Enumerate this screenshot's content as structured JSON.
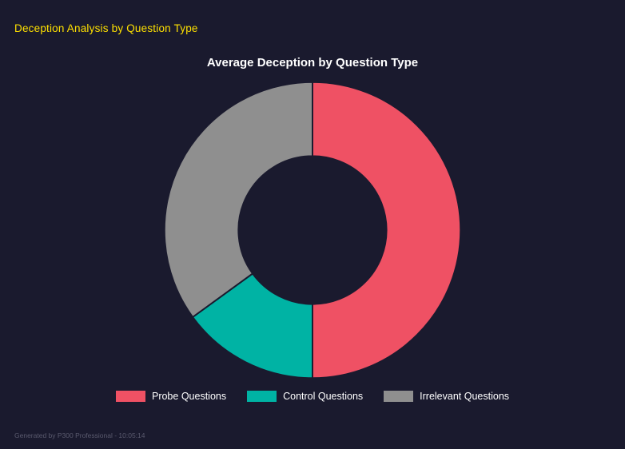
{
  "page": {
    "heading": "Deception Analysis by Question Type",
    "footer": "Generated by P300 Professional - 10:05:14"
  },
  "colors": {
    "background": "#1a1a2e",
    "heading": "#ffe100",
    "chart_title": "#ffffff",
    "legend_text": "#ffffff",
    "footer_text": "#5a5a6e"
  },
  "chart_data": {
    "type": "pie",
    "subtype": "doughnut",
    "title": "Average Deception by Question Type",
    "categories": [
      "Probe Questions",
      "Control Questions",
      "Irrelevant Questions"
    ],
    "values": [
      50,
      15,
      35
    ],
    "values_note": "percent of circle, estimated from arc angles; segments drawn clockwise from 12 o'clock",
    "colors": [
      "#ef5164",
      "#00b3a4",
      "#8f8f8f"
    ],
    "cutout_percent": 50,
    "legend_position": "bottom",
    "grid": false
  }
}
